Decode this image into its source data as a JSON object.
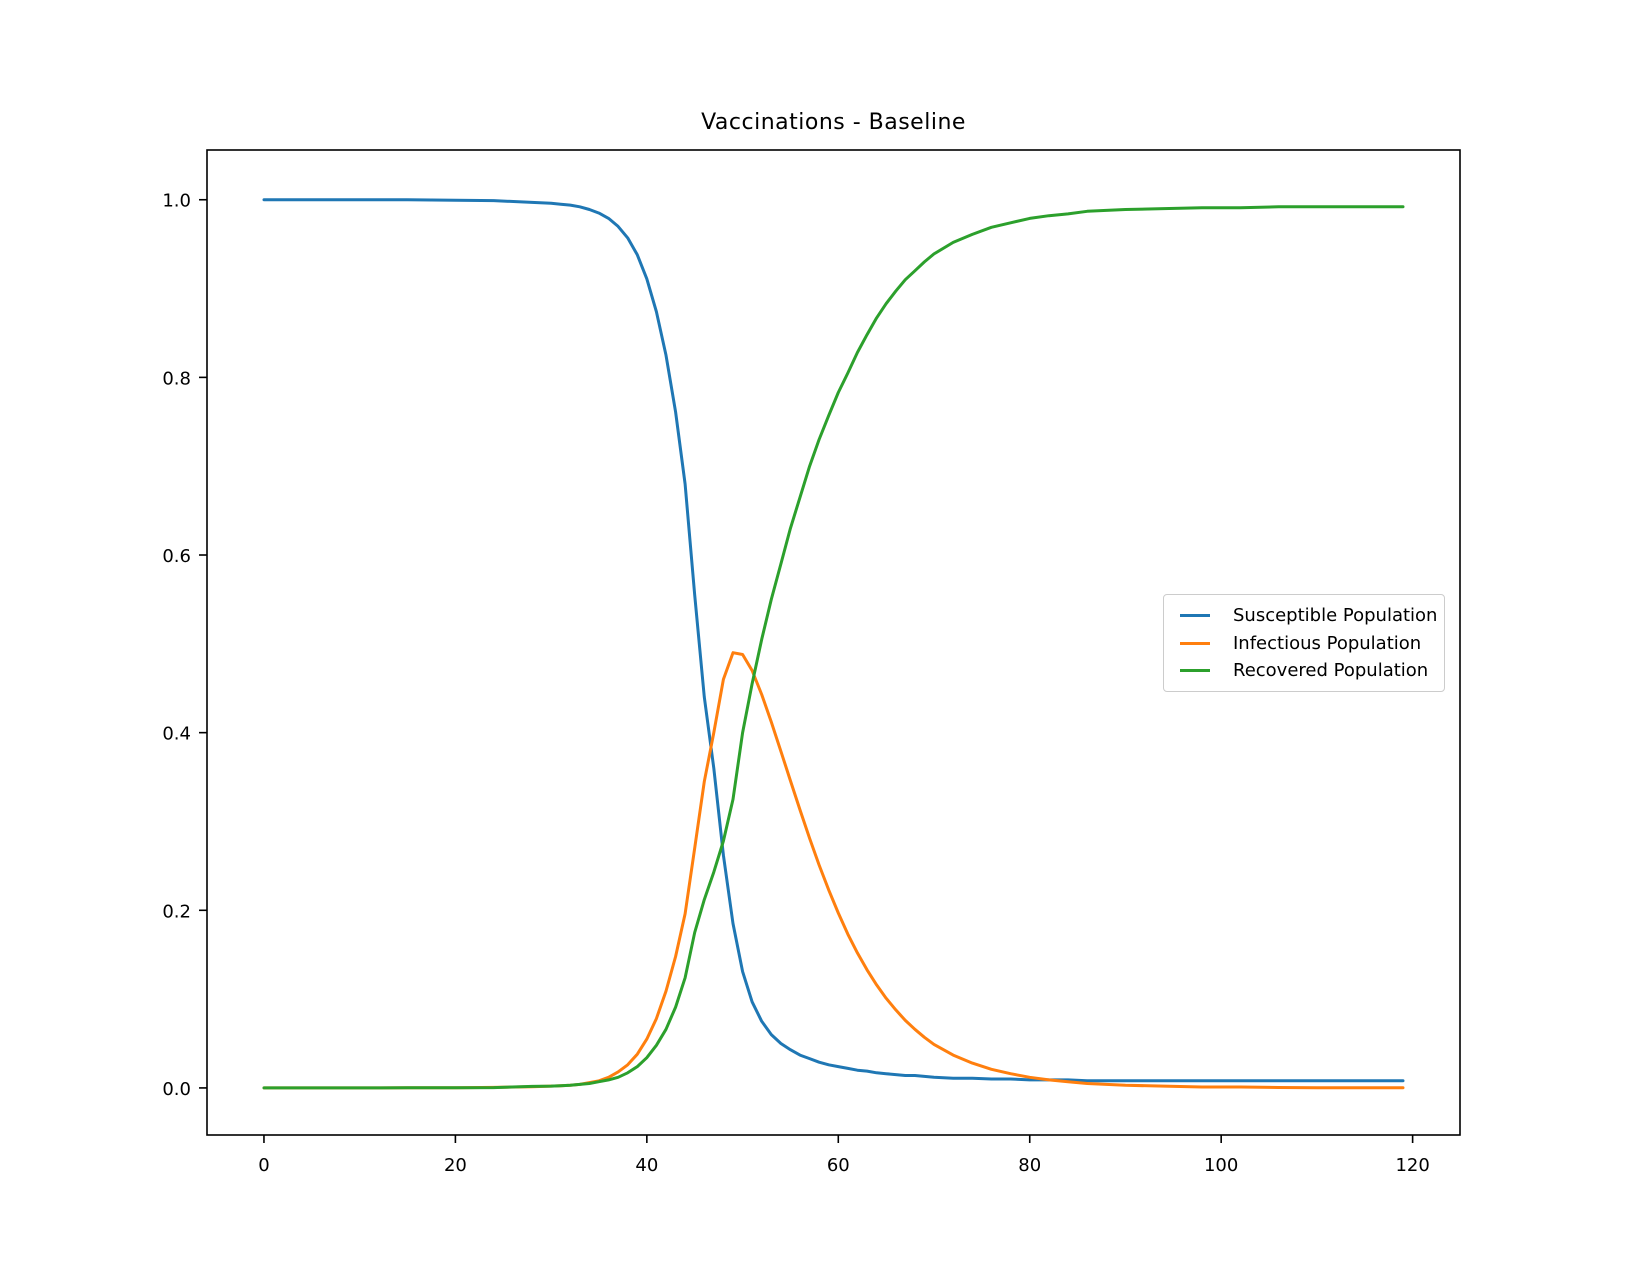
{
  "chart_data": {
    "type": "line",
    "title": "Vaccinations - Baseline",
    "xlabel": "",
    "ylabel": "",
    "grid": false,
    "legend_position": "center right",
    "xlim": [
      -5.95,
      124.95
    ],
    "ylim": [
      -0.053,
      1.056
    ],
    "x_ticks": [
      0,
      20,
      40,
      60,
      80,
      100,
      120
    ],
    "x_tick_labels": [
      "0",
      "20",
      "40",
      "60",
      "80",
      "100",
      "120"
    ],
    "y_ticks": [
      0.0,
      0.2,
      0.4,
      0.6,
      0.8,
      1.0
    ],
    "y_tick_labels": [
      "0.0",
      "0.2",
      "0.4",
      "0.6",
      "0.8",
      "1.0"
    ],
    "x": [
      0,
      5,
      10,
      15,
      20,
      24,
      28,
      30,
      31,
      32,
      33,
      34,
      35,
      36,
      37,
      38,
      39,
      40,
      41,
      42,
      43,
      44,
      45,
      46,
      47,
      48,
      49,
      50,
      51,
      52,
      53,
      54,
      55,
      56,
      57,
      58,
      59,
      60,
      61,
      62,
      63,
      64,
      65,
      66,
      67,
      68,
      69,
      70,
      72,
      74,
      76,
      78,
      80,
      82,
      84,
      86,
      88,
      90,
      94,
      98,
      102,
      106,
      110,
      115,
      119
    ],
    "series": [
      {
        "name": "Susceptible Population",
        "color": "#1f77b4",
        "values": [
          1.0,
          1.0,
          1.0,
          1.0,
          0.9995,
          0.999,
          0.997,
          0.996,
          0.995,
          0.994,
          0.992,
          0.989,
          0.985,
          0.979,
          0.97,
          0.957,
          0.938,
          0.911,
          0.874,
          0.825,
          0.761,
          0.68,
          0.555,
          0.44,
          0.36,
          0.262,
          0.185,
          0.131,
          0.097,
          0.075,
          0.06,
          0.05,
          0.043,
          0.037,
          0.033,
          0.029,
          0.026,
          0.024,
          0.022,
          0.02,
          0.019,
          0.017,
          0.016,
          0.015,
          0.014,
          0.014,
          0.013,
          0.012,
          0.011,
          0.011,
          0.01,
          0.01,
          0.009,
          0.009,
          0.009,
          0.008,
          0.008,
          0.008,
          0.008,
          0.008,
          0.008,
          0.008,
          0.008,
          0.008,
          0.008
        ]
      },
      {
        "name": "Infectious Population",
        "color": "#ff7f0e",
        "values": [
          0.0,
          0.0,
          0.0,
          0.0001,
          0.0003,
          0.0006,
          0.0013,
          0.002,
          0.0025,
          0.003,
          0.004,
          0.006,
          0.008,
          0.012,
          0.018,
          0.026,
          0.038,
          0.055,
          0.078,
          0.109,
          0.148,
          0.196,
          0.27,
          0.345,
          0.4,
          0.46,
          0.49,
          0.488,
          0.47,
          0.443,
          0.412,
          0.379,
          0.346,
          0.313,
          0.281,
          0.251,
          0.223,
          0.197,
          0.173,
          0.152,
          0.133,
          0.116,
          0.101,
          0.088,
          0.076,
          0.066,
          0.057,
          0.049,
          0.037,
          0.028,
          0.021,
          0.016,
          0.012,
          0.009,
          0.007,
          0.005,
          0.004,
          0.003,
          0.002,
          0.001,
          0.001,
          0.0005,
          0.0003,
          0.0002,
          0.0001
        ]
      },
      {
        "name": "Recovered Population",
        "color": "#2ca02c",
        "values": [
          0.0,
          0.0,
          0.0,
          0.0001,
          0.0002,
          0.0004,
          0.0017,
          0.002,
          0.0025,
          0.003,
          0.004,
          0.005,
          0.007,
          0.009,
          0.012,
          0.017,
          0.024,
          0.034,
          0.048,
          0.066,
          0.091,
          0.124,
          0.175,
          0.212,
          0.243,
          0.278,
          0.325,
          0.4,
          0.455,
          0.505,
          0.55,
          0.59,
          0.63,
          0.665,
          0.7,
          0.73,
          0.757,
          0.783,
          0.805,
          0.828,
          0.848,
          0.867,
          0.883,
          0.897,
          0.91,
          0.92,
          0.93,
          0.939,
          0.952,
          0.961,
          0.969,
          0.974,
          0.979,
          0.982,
          0.984,
          0.987,
          0.988,
          0.989,
          0.99,
          0.991,
          0.991,
          0.992,
          0.992,
          0.992,
          0.992
        ]
      }
    ]
  }
}
